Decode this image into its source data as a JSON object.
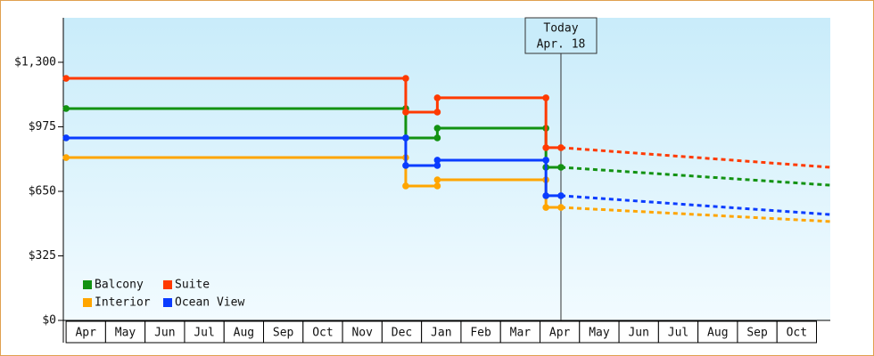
{
  "chart_data": {
    "type": "step-line",
    "xlim": [
      -0.07,
      19.35
    ],
    "ylim": [
      0,
      1524
    ],
    "yticks": [
      {
        "value": 0,
        "label": "$0"
      },
      {
        "value": 325,
        "label": "$325"
      },
      {
        "value": 650,
        "label": "$650"
      },
      {
        "value": 975,
        "label": "$975"
      },
      {
        "value": 1300,
        "label": "$1,300"
      }
    ],
    "xticks": [
      {
        "value": 0.5,
        "label": "Apr"
      },
      {
        "value": 1.5,
        "label": "May"
      },
      {
        "value": 2.5,
        "label": "Jun"
      },
      {
        "value": 3.5,
        "label": "Jul"
      },
      {
        "value": 4.5,
        "label": "Aug"
      },
      {
        "value": 5.5,
        "label": "Sep"
      },
      {
        "value": 6.5,
        "label": "Oct"
      },
      {
        "value": 7.5,
        "label": "Nov"
      },
      {
        "value": 8.5,
        "label": "Dec"
      },
      {
        "value": 9.5,
        "label": "Jan"
      },
      {
        "value": 10.5,
        "label": "Feb"
      },
      {
        "value": 11.5,
        "label": "Mar"
      },
      {
        "value": 12.5,
        "label": "Apr"
      },
      {
        "value": 13.5,
        "label": "May"
      },
      {
        "value": 14.5,
        "label": "Jun"
      },
      {
        "value": 15.5,
        "label": "Jul"
      },
      {
        "value": 16.5,
        "label": "Aug"
      },
      {
        "value": 17.5,
        "label": "Sep"
      },
      {
        "value": 18.5,
        "label": "Oct"
      }
    ],
    "today": {
      "x": 12.53,
      "label": [
        "Today",
        "Apr. 18"
      ]
    },
    "x": [
      0,
      8.6,
      8.6,
      9.4,
      9.4,
      12.15,
      12.15,
      12.53
    ],
    "forecast_x": [
      12.53,
      19.35
    ],
    "legend_position": "lower left",
    "series": [
      {
        "name": "Balcony",
        "color": "#129212",
        "values": [
          1067,
          1067,
          919,
          919,
          968,
          968,
          771,
          771
        ],
        "forecast_values": [
          771,
          681
        ]
      },
      {
        "name": "Suite",
        "color": "#ff3a00",
        "values": [
          1219,
          1219,
          1049,
          1049,
          1121,
          1121,
          870,
          870
        ],
        "forecast_values": [
          870,
          771
        ]
      },
      {
        "name": "Interior",
        "color": "#ffa500",
        "values": [
          820,
          820,
          677,
          677,
          708,
          708,
          569,
          569
        ],
        "forecast_values": [
          569,
          498
        ]
      },
      {
        "name": "Ocean View",
        "color": "#0a3cff",
        "values": [
          919,
          919,
          780,
          780,
          807,
          807,
          628,
          628
        ],
        "forecast_values": [
          628,
          533
        ]
      }
    ]
  }
}
